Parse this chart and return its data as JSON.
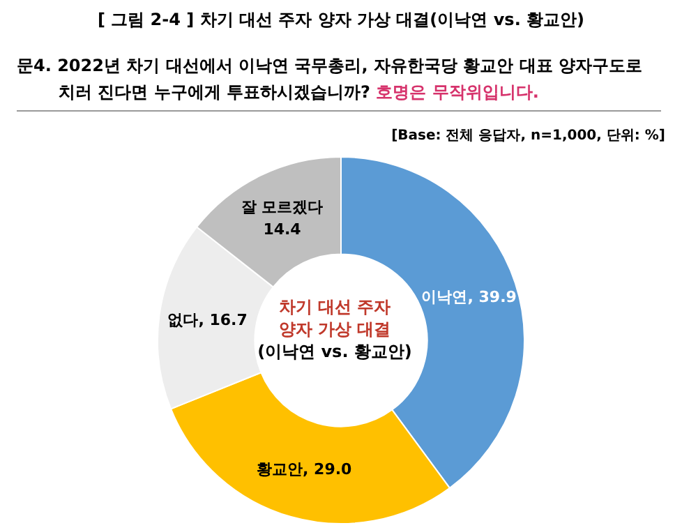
{
  "chart_data": {
    "type": "donut",
    "title": "[ 그림 2-4 ] 차기 대선 주자 양자 가상 대결(이낙연 vs. 황교안)",
    "subtitle": "문4. 2022년 차기 대선에서 이낙연 국무총리, 자유한국당 황교안 대표 양자구도로 치러 진다면 누구에게 투표하시겠습니까?",
    "annotations": [
      "호명은 무작위입니다.",
      "[Base: 전체 응답자, n=1,000, 단위: %]",
      "차기 대선 주자\n양자 가상 대결",
      "(이낙연 vs. 황교안)"
    ],
    "categories": [
      "이낙연",
      "황교안",
      "없다",
      "잘 모르겠다"
    ],
    "values": [
      39.9,
      29.0,
      16.7,
      14.4
    ],
    "value_labels": [
      "39.9",
      "29.0",
      "16.7",
      "14.4"
    ],
    "colors": [
      "#5b9bd5",
      "#ffc000",
      "#ededed",
      "#bfbfbf"
    ],
    "legend": false
  }
}
